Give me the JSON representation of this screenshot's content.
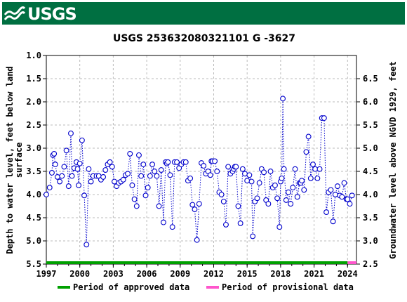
{
  "logo": {
    "text": "USGS",
    "icon": "usgs-wave-icon"
  },
  "chart_data": {
    "type": "line",
    "title": "USGS 253632080321101 G  -3627",
    "ylabel_left": "Depth to water level, feet below land surface",
    "ylabel_left_lines": [
      "Depth to water level, feet below land",
      "surface"
    ],
    "ylabel_right": "Groundwater level above NGVD 1929, feet",
    "left_axis": {
      "min": 1.0,
      "max": 5.5,
      "inverted": true,
      "ticks": [
        "1.0",
        "1.5",
        "2.0",
        "2.5",
        "3.0",
        "3.5",
        "4.0",
        "4.5",
        "5.0",
        "5.5"
      ]
    },
    "right_axis": {
      "min": 2.5,
      "max": 6.5,
      "ticks": [
        "2.5",
        "3.0",
        "3.5",
        "4.0",
        "4.5",
        "5.0",
        "5.5",
        "6.0",
        "6.5"
      ]
    },
    "x_axis": {
      "min": 1997.0,
      "max": 2024.8,
      "ticks": [
        "1997",
        "2000",
        "2003",
        "2006",
        "2009",
        "2012",
        "2015",
        "2018",
        "2021",
        "2024"
      ]
    },
    "grid": true,
    "series": [
      {
        "name": "Period of approved data",
        "color": "#00a000",
        "x": [
          1997.0,
          1997.3,
          1997.5,
          1997.6,
          1997.7,
          1997.8,
          1998.0,
          1998.2,
          1998.4,
          1998.6,
          1998.8,
          1999.0,
          1999.2,
          1999.3,
          1999.5,
          1999.7,
          1999.8,
          1999.9,
          2000.0,
          2000.2,
          2000.4,
          2000.6,
          2000.8,
          2001.0,
          2001.2,
          2001.5,
          2001.7,
          2001.9,
          2002.1,
          2002.3,
          2002.5,
          2002.7,
          2002.9,
          2003.1,
          2003.3,
          2003.5,
          2003.7,
          2003.9,
          2004.1,
          2004.3,
          2004.5,
          2004.7,
          2004.9,
          2005.1,
          2005.3,
          2005.5,
          2005.7,
          2005.9,
          2006.1,
          2006.3,
          2006.5,
          2006.7,
          2006.9,
          2007.1,
          2007.3,
          2007.5,
          2007.7,
          2007.8,
          2007.9,
          2008.1,
          2008.3,
          2008.5,
          2008.7,
          2008.9,
          2009.1,
          2009.3,
          2009.5,
          2009.7,
          2009.9,
          2010.1,
          2010.3,
          2010.5,
          2010.7,
          2010.9,
          2011.1,
          2011.3,
          2011.5,
          2011.7,
          2011.8,
          2011.9,
          2012.1,
          2012.3,
          2012.5,
          2012.7,
          2012.9,
          2013.1,
          2013.3,
          2013.5,
          2013.7,
          2013.8,
          2013.9,
          2014.0,
          2014.2,
          2014.4,
          2014.6,
          2014.8,
          2015.0,
          2015.2,
          2015.4,
          2015.5,
          2015.7,
          2015.9,
          2016.1,
          2016.3,
          2016.5,
          2016.7,
          2016.9,
          2017.1,
          2017.3,
          2017.5,
          2017.7,
          2017.9,
          2018.0,
          2018.1,
          2018.2,
          2018.3,
          2018.5,
          2018.7,
          2018.9,
          2019.1,
          2019.3,
          2019.5,
          2019.7,
          2019.8,
          2019.9,
          2020.1,
          2020.3,
          2020.5,
          2020.7,
          2020.9,
          2021.1,
          2021.3,
          2021.5,
          2021.7,
          2021.9,
          2022.1,
          2022.3,
          2022.5,
          2022.7,
          2022.9,
          2023.1,
          2023.3,
          2023.5,
          2023.7,
          2023.9
        ],
        "y": [
          4.0,
          3.85,
          3.53,
          3.15,
          3.12,
          3.35,
          3.62,
          3.72,
          3.6,
          3.4,
          3.05,
          3.82,
          2.68,
          3.6,
          3.43,
          3.3,
          3.45,
          3.8,
          3.33,
          2.83,
          4.02,
          5.08,
          3.45,
          3.72,
          3.6,
          3.6,
          3.6,
          3.68,
          3.62,
          3.47,
          3.35,
          3.3,
          3.4,
          3.72,
          3.82,
          3.75,
          3.72,
          3.68,
          3.58,
          3.55,
          3.12,
          3.8,
          4.1,
          4.25,
          3.15,
          3.6,
          3.35,
          4.02,
          3.85,
          3.6,
          3.35,
          3.5,
          3.6,
          4.25,
          3.47,
          4.6,
          3.3,
          3.33,
          3.3,
          3.58,
          4.7,
          3.3,
          3.3,
          3.43,
          3.35,
          3.3,
          3.3,
          3.7,
          3.65,
          4.22,
          4.32,
          4.98,
          4.2,
          3.32,
          3.38,
          3.55,
          3.5,
          3.58,
          3.28,
          3.28,
          3.28,
          3.5,
          3.95,
          4.0,
          4.15,
          4.65,
          3.4,
          3.55,
          3.5,
          3.45,
          3.4,
          3.4,
          4.25,
          4.62,
          3.45,
          3.55,
          3.7,
          3.58,
          3.72,
          4.9,
          4.15,
          4.08,
          3.75,
          3.45,
          3.52,
          4.12,
          4.2,
          3.5,
          3.85,
          3.8,
          4.08,
          4.7,
          3.72,
          3.65,
          1.93,
          3.45,
          4.12,
          3.95,
          4.2,
          3.85,
          3.45,
          4.05,
          3.75,
          3.75,
          3.7,
          3.9,
          3.08,
          2.75,
          3.65,
          3.35,
          3.45,
          3.65,
          3.45,
          2.35,
          2.35,
          4.38,
          3.95,
          3.9,
          4.58,
          4.0,
          3.82,
          4.02,
          4.05,
          3.75,
          4.1
        ]
      },
      {
        "name": "Period of provisional data",
        "color": "#ff55cc",
        "x": [
          2024.0,
          2024.2,
          2024.4
        ],
        "y": [
          4.1,
          4.2,
          4.02
        ]
      }
    ],
    "legend": {
      "placement": "bottom",
      "entries": [
        "Period of approved data",
        "Period of provisional data"
      ]
    },
    "approved_period": [
      1997.0,
      2024.0
    ],
    "provisional_period": [
      2024.0,
      2024.8
    ]
  }
}
